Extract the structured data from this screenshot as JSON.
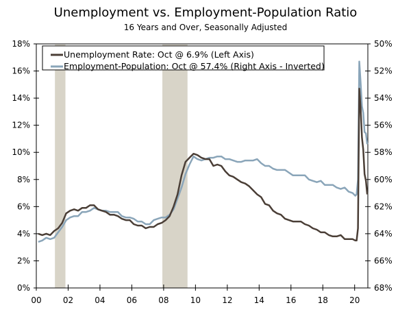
{
  "chart_data": {
    "type": "line",
    "title": "Unemployment vs. Employment-Population Ratio",
    "subtitle": "16 Years and Over, Seasonally Adjusted",
    "x_range": [
      2000,
      2020.83
    ],
    "x_ticks": [
      "00",
      "02",
      "04",
      "06",
      "08",
      "10",
      "12",
      "14",
      "16",
      "18",
      "20"
    ],
    "left_axis": {
      "ylim": [
        0,
        18
      ],
      "ticks": [
        "0%",
        "2%",
        "4%",
        "6%",
        "8%",
        "10%",
        "12%",
        "14%",
        "16%",
        "18%"
      ]
    },
    "right_axis": {
      "ylim": [
        50,
        68
      ],
      "inverted": true,
      "ticks": [
        "50%",
        "52%",
        "54%",
        "56%",
        "58%",
        "60%",
        "62%",
        "64%",
        "66%",
        "68%"
      ]
    },
    "recessions": [
      [
        2001.17,
        2001.83
      ],
      [
        2007.92,
        2009.5
      ]
    ],
    "legend_position": "top-left",
    "series": [
      {
        "name": "Unemployment Rate: Oct @ 6.9% (Left Axis)",
        "axis": "left",
        "color": "#4a3e36",
        "quarterly_2000_2019": [
          4.0,
          3.9,
          4.0,
          3.9,
          4.2,
          4.4,
          4.8,
          5.5,
          5.7,
          5.8,
          5.7,
          5.9,
          5.9,
          6.1,
          6.1,
          5.8,
          5.7,
          5.6,
          5.4,
          5.4,
          5.3,
          5.1,
          5.0,
          5.0,
          4.7,
          4.6,
          4.6,
          4.4,
          4.5,
          4.5,
          4.7,
          4.8,
          5.0,
          5.3,
          6.0,
          6.9,
          8.3,
          9.3,
          9.6,
          9.9,
          9.8,
          9.6,
          9.5,
          9.5,
          9.0,
          9.1,
          9.0,
          8.6,
          8.3,
          8.2,
          8.0,
          7.8,
          7.7,
          7.5,
          7.2,
          6.9,
          6.7,
          6.2,
          6.1,
          5.7,
          5.5,
          5.4,
          5.1,
          5.0,
          4.9,
          4.9,
          4.9,
          4.7,
          4.6,
          4.4,
          4.3,
          4.1,
          4.1,
          3.9,
          3.8,
          3.8,
          3.9,
          3.6,
          3.6,
          3.6
        ],
        "monthly_2020_jan_oct": [
          3.5,
          3.5,
          4.4,
          14.7,
          13.3,
          11.1,
          10.2,
          8.4,
          7.9,
          6.9
        ]
      },
      {
        "name": "Employment-Population: Oct @ 57.4% (Right Axis - Inverted)",
        "axis": "right",
        "color": "#8aa5b9",
        "quarterly_2000_2019": [
          64.6,
          64.5,
          64.3,
          64.4,
          64.3,
          63.9,
          63.5,
          63.0,
          62.8,
          62.7,
          62.7,
          62.4,
          62.4,
          62.3,
          62.1,
          62.2,
          62.3,
          62.3,
          62.4,
          62.4,
          62.4,
          62.7,
          62.8,
          62.8,
          62.9,
          63.1,
          63.1,
          63.3,
          63.3,
          63.0,
          62.9,
          62.8,
          62.8,
          62.6,
          62.2,
          61.4,
          60.6,
          59.6,
          58.9,
          58.3,
          58.5,
          58.6,
          58.5,
          58.4,
          58.4,
          58.3,
          58.3,
          58.5,
          58.5,
          58.6,
          58.7,
          58.7,
          58.6,
          58.6,
          58.6,
          58.5,
          58.8,
          59.0,
          59.0,
          59.2,
          59.3,
          59.3,
          59.3,
          59.5,
          59.7,
          59.7,
          59.7,
          59.7,
          60.0,
          60.1,
          60.2,
          60.1,
          60.4,
          60.4,
          60.4,
          60.6,
          60.7,
          60.6,
          60.9,
          61.0
        ],
        "monthly_2020_jan_oct": [
          61.2,
          61.1,
          60.0,
          51.3,
          52.8,
          54.6,
          55.1,
          56.5,
          56.6,
          57.4
        ]
      }
    ]
  }
}
